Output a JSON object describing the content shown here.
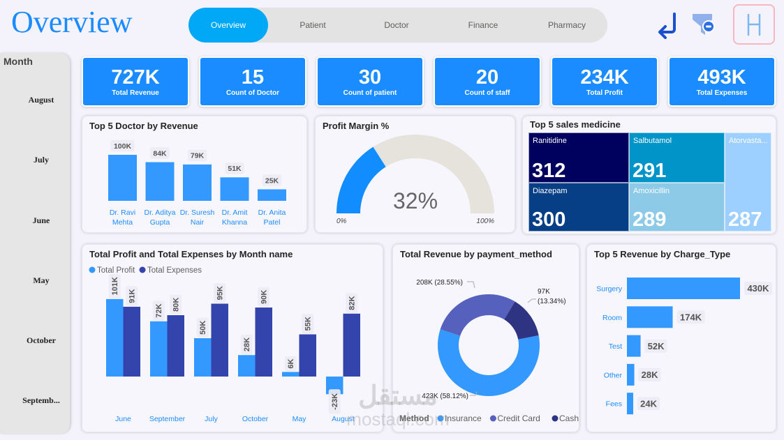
{
  "header": {
    "title": "Overview",
    "nav": [
      {
        "label": "Overview",
        "active": true
      },
      {
        "label": "Patient",
        "active": false
      },
      {
        "label": "Doctor",
        "active": false
      },
      {
        "label": "Finance",
        "active": false
      },
      {
        "label": "Pharmacy",
        "active": false
      }
    ],
    "icons": {
      "back": "back-arrow-icon",
      "filter": "clear-filter-icon",
      "logo": "logo-H-icon"
    },
    "logo_text": "H"
  },
  "colors": {
    "accent": "#1a8cff",
    "nav_active": "#00a8f5",
    "profit": "#3399ff",
    "expenses": "#3444ad",
    "gauge_fill": "#118dff",
    "gauge_bg": "#e6e2dc",
    "insurance": "#3399ff",
    "credit_card": "#5661bd",
    "cash": "#2e3482"
  },
  "slicer": {
    "title": "Month",
    "items": [
      "August",
      "July",
      "June",
      "May",
      "October",
      "Septemb..."
    ]
  },
  "kpis": [
    {
      "value": "727K",
      "label": "Total Revenue"
    },
    {
      "value": "15",
      "label": "Count of Doctor"
    },
    {
      "value": "30",
      "label": "Count of patient"
    },
    {
      "value": "20",
      "label": "Count of staff"
    },
    {
      "value": "234K",
      "label": "Total Profit"
    },
    {
      "value": "493K",
      "label": "Total Expenses"
    }
  ],
  "panels": {
    "doctors_title": "Top 5 Doctor by Revenue",
    "gauge_title": "Profit Margin %",
    "treemap_title": "Top 5 sales medicine",
    "month_title": "Total Profit and Total Expenses by Month name",
    "payment_title": "Total Revenue by payment_method",
    "charge_title": "Top 5 Revenue by Charge_Type"
  },
  "watermark": {
    "arabic": "مستقل",
    "latin": "mostaql.com"
  },
  "chart_data": [
    {
      "id": "doctors",
      "type": "bar",
      "title": "Top 5 Doctor by Revenue",
      "categories": [
        [
          "Dr. Ravi",
          "Mehta"
        ],
        [
          "Dr. Aditya",
          "Gupta"
        ],
        [
          "Dr. Suresh",
          "Nair"
        ],
        [
          "Dr. Amit",
          "Khanna"
        ],
        [
          "Dr. Anita",
          "Patel"
        ]
      ],
      "values": [
        100,
        84,
        79,
        51,
        25
      ],
      "labels": [
        "100K",
        "84K",
        "79K",
        "51K",
        "25K"
      ],
      "unit": "K"
    },
    {
      "id": "gauge",
      "type": "gauge",
      "title": "Profit Margin %",
      "value": 32,
      "value_label": "32%",
      "min_label": "0%",
      "max_label": "100%",
      "range": [
        0,
        100
      ]
    },
    {
      "id": "treemap",
      "type": "treemap",
      "title": "Top 5 sales medicine",
      "items": [
        {
          "name": "Ranitidine",
          "value": 312,
          "color": "#00005e"
        },
        {
          "name": "Diazepam",
          "value": 300,
          "color": "#063f86"
        },
        {
          "name": "Salbutamol",
          "value": 291,
          "color": "#0094c8"
        },
        {
          "name": "Amoxicillin",
          "value": 289,
          "color": "#8dcae8"
        },
        {
          "name": "Atorvasta...",
          "value": 287,
          "color": "#9dcfff"
        }
      ]
    },
    {
      "id": "month",
      "type": "bar",
      "title": "Total Profit and Total Expenses by Month name",
      "categories": [
        "June",
        "September",
        "July",
        "October",
        "May",
        "August"
      ],
      "series": [
        {
          "name": "Total Profit",
          "values": [
            101,
            72,
            50,
            28,
            6,
            -23
          ],
          "labels": [
            "101K",
            "72K",
            "50K",
            "28K",
            "6K",
            "-23K"
          ]
        },
        {
          "name": "Total Expenses",
          "values": [
            91,
            80,
            95,
            90,
            55,
            82
          ],
          "labels": [
            "91K",
            "80K",
            "95K",
            "90K",
            "55K",
            "82K"
          ]
        }
      ],
      "legend": "top-left",
      "ylim": [
        -30,
        110
      ]
    },
    {
      "id": "payment",
      "type": "pie",
      "donut": true,
      "title": "Total Revenue by payment_method",
      "legend_title": "Method",
      "slices": [
        {
          "name": "Insurance",
          "value": 423,
          "pct": 58.12,
          "label": "423K (58.12%)"
        },
        {
          "name": "Credit Card",
          "value": 208,
          "pct": 28.55,
          "label": "208K (28.55%)"
        },
        {
          "name": "Cash",
          "value": 97,
          "pct": 13.34,
          "label": "97K (13.34%)"
        }
      ]
    },
    {
      "id": "charge",
      "type": "bar",
      "orientation": "horizontal",
      "title": "Top 5 Revenue by Charge_Type",
      "categories": [
        "Surgery",
        "Room",
        "Test",
        "Other",
        "Fees"
      ],
      "values": [
        430,
        174,
        52,
        28,
        24
      ],
      "labels": [
        "430K",
        "174K",
        "52K",
        "28K",
        "24K"
      ]
    }
  ]
}
